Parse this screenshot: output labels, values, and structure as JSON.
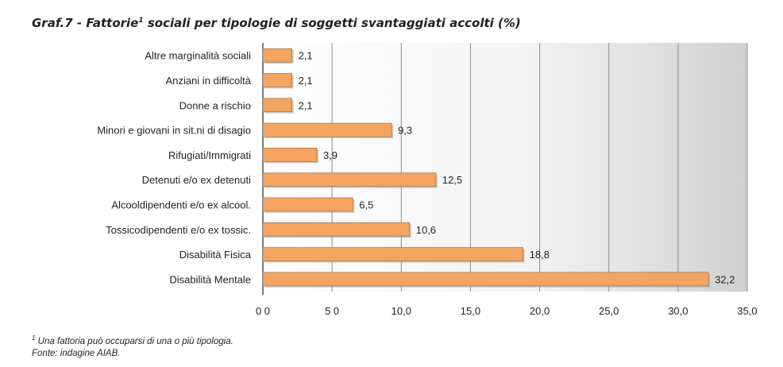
{
  "title": {
    "main": "Graf.7 - Fattorie",
    "marker": "1",
    "rest": " sociali per tipologie di soggetti svantaggiati accolti (%)"
  },
  "chart_data": {
    "type": "bar",
    "orientation": "horizontal",
    "categories": [
      "Altre marginalità sociali",
      "Anziani in difficoltà",
      "Donne a rischio",
      "Minori e giovani in sit.ni di disagio",
      "Rifugiati/Immigrati",
      "Detenuti e/o ex detenuti",
      "Alcooldipendenti e/o ex alcool.",
      "Tossicodipendenti e/o ex tossic.",
      "Disabilità Fisica",
      "Disabilità Mentale"
    ],
    "values": [
      2.1,
      2.1,
      2.1,
      9.3,
      3.9,
      12.5,
      6.5,
      10.6,
      18.8,
      32.2
    ],
    "value_labels": [
      "2,1",
      "2,1",
      "2,1",
      "9,3",
      "3,9",
      "12,5",
      "6,5",
      "10,6",
      "18,8",
      "32,2"
    ],
    "xlim": [
      0,
      35
    ],
    "ticks": [
      0,
      5,
      10,
      15,
      20,
      25,
      30,
      35
    ],
    "tick_labels": [
      "0 0",
      "5 0",
      "10,0",
      "15,0",
      "20,0",
      "25,0",
      "30,0",
      "35,0"
    ],
    "grid": true,
    "legend": "none",
    "bar_color": "#f4a460",
    "bar_edge_color": "#8a6a4a",
    "gridline_color": "#8c8c8c"
  },
  "notes": {
    "marker": "1",
    "footnote": " Una fattoria può occuparsi di una o più tipologia.",
    "source": "Fonte: indagine AIAB."
  }
}
